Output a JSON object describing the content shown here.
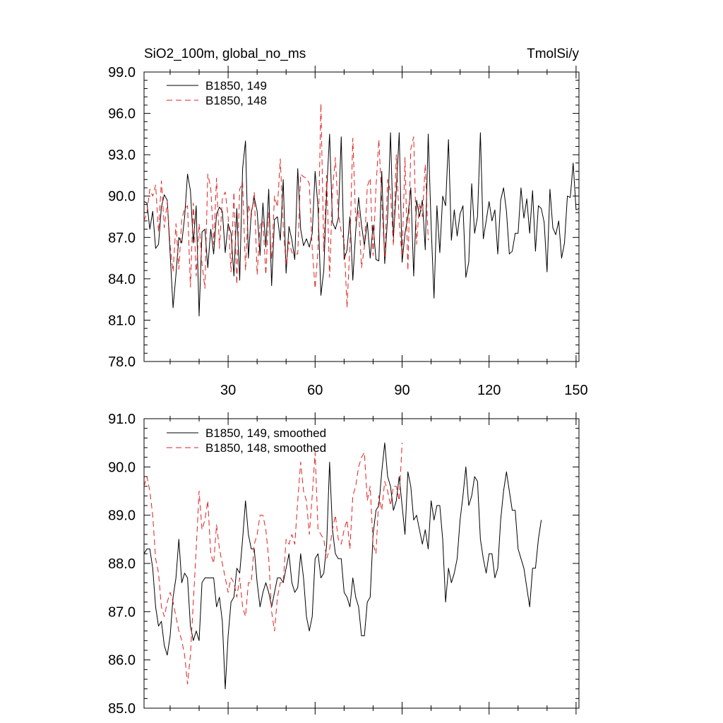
{
  "chart_data": [
    {
      "type": "line",
      "title_left": "SiO2_100m, global_no_ms",
      "title_right": "TmolSi/y",
      "xlim": [
        1,
        151
      ],
      "ylim": [
        78,
        99
      ],
      "yticks": [
        "78.0",
        "81.0",
        "84.0",
        "87.0",
        "90.0",
        "93.0",
        "96.0",
        "99.0"
      ],
      "xticks": [
        "30",
        "60",
        "90",
        "120",
        "150"
      ],
      "show_xtick_labels": true,
      "legend_position": "top-left",
      "series": [
        {
          "name": "B1850, 149",
          "color": "#000000",
          "dash": "solid",
          "values": [
            89.6,
            89.5,
            87.6,
            88.9,
            86.2,
            86.5,
            89.2,
            90.1,
            89.7,
            85.8,
            81.9,
            84.3,
            87.0,
            86.6,
            88.5,
            91.6,
            90.4,
            86.6,
            89.3,
            81.3,
            87.4,
            87.6,
            84.8,
            87.6,
            85.8,
            88.7,
            89.2,
            88.9,
            85.9,
            88.0,
            87.3,
            84.2,
            89.1,
            83.9,
            92.0,
            94.0,
            85.5,
            88.8,
            89.9,
            88.9,
            85.7,
            89.5,
            86.3,
            90.5,
            83.5,
            88.3,
            88.5,
            86.8,
            91.2,
            84.4,
            87.8,
            86.8,
            85.4,
            92.0,
            87.6,
            86.4,
            86.9,
            86.3,
            87.3,
            91.8,
            89.2,
            82.8,
            84.6,
            90.4,
            94.5,
            88.1,
            87.6,
            88.4,
            94.3,
            85.4,
            86.1,
            88.5,
            83.9,
            87.5,
            89.9,
            87.9,
            86.4,
            88.1,
            85.5,
            87.9,
            85.4,
            85.3,
            91.8,
            85.1,
            88.5,
            94.6,
            87.0,
            90.4,
            94.6,
            85.2,
            87.3,
            88.5,
            90.6,
            84.2,
            89.7,
            88.5,
            89.7,
            86.1,
            94.5,
            87.9,
            82.6,
            89.3,
            85.9,
            90.0,
            89.3,
            94.1,
            86.8,
            89.0,
            87.1,
            88.7,
            89.3,
            84.1,
            85.2,
            90.9,
            87.3,
            88.5,
            94.6,
            86.9,
            88.2,
            89.6,
            88.2,
            89.0,
            85.8,
            89.7,
            90.6,
            88.9,
            85.8,
            86.0,
            87.3,
            87.3,
            90.6,
            88.4,
            89.8,
            87.3,
            90.4,
            86.0,
            89.3,
            89.1,
            88.1,
            84.5,
            90.5,
            87.7,
            87.2,
            88.2,
            85.5,
            86.6,
            90.0,
            89.9,
            92.4,
            89.0,
            89.1
          ]
        },
        {
          "name": "B1850, 148",
          "color": "#e0201f",
          "dash": "dashed",
          "values": [
            88.2,
            88.8,
            90.5,
            90.0,
            90.8,
            87.4,
            91.1,
            87.7,
            89.6,
            86.4,
            84.5,
            88.0,
            84.7,
            88.3,
            89.1,
            89.3,
            83.4,
            89.5,
            84.2,
            88.0,
            85.1,
            83.3,
            91.6,
            90.6,
            86.5,
            91.3,
            86.2,
            89.8,
            90.3,
            88.5,
            84.5,
            90.3,
            83.6,
            90.5,
            91.0,
            84.6,
            89.4,
            88.5,
            90.3,
            84.3,
            87.9,
            88.2,
            84.3,
            88.8,
            85.4,
            90.0,
            89.2,
            92.7,
            87.8,
            85.0,
            86.7,
            85.9,
            85.8,
            85.8,
            91.6,
            91.4,
            91.3,
            90.9,
            86.2,
            83.3,
            86.1,
            96.7,
            86.0,
            91.5,
            84.1,
            90.4,
            92.8,
            88.8,
            87.4,
            86.8,
            81.9,
            86.5,
            94.2,
            88.2,
            89.0,
            84.8,
            86.3,
            90.7,
            91.3,
            85.7,
            90.6,
            94.1,
            89.6,
            85.5,
            91.2,
            90.3,
            86.4,
            93.0,
            88.1,
            85.6,
            92.8,
            84.6,
            93.4,
            94.3,
            86.5,
            89.5,
            88.5,
            92.3,
            86.8
          ]
        }
      ]
    },
    {
      "type": "line",
      "title": "",
      "xlim": [
        1,
        151
      ],
      "ylim": [
        85,
        91
      ],
      "yticks": [
        "85.0",
        "86.0",
        "87.0",
        "88.0",
        "89.0",
        "90.0",
        "91.0"
      ],
      "xticks": [
        "30",
        "60",
        "90",
        "120",
        "150"
      ],
      "show_xtick_labels": false,
      "legend_position": "top-left",
      "series": [
        {
          "name": "B1850, 149, smoothed",
          "color": "#000000",
          "dash": "solid",
          "values": [
            88.2,
            88.3,
            88.3,
            87.9,
            87.1,
            86.7,
            86.8,
            86.3,
            86.1,
            86.5,
            87.3,
            87.7,
            88.5,
            87.6,
            87.8,
            87.7,
            86.7,
            86.4,
            86.6,
            86.4,
            87.6,
            87.7,
            87.7,
            87.7,
            87.7,
            87.1,
            87.3,
            86.8,
            85.4,
            86.5,
            87.2,
            87.3,
            87.9,
            87.8,
            88.5,
            89.3,
            88.6,
            88.3,
            88.3,
            87.6,
            87.1,
            87.4,
            87.6,
            87.4,
            87.1,
            87.4,
            87.7,
            87.7,
            87.6,
            87.9,
            88.2,
            87.6,
            87.4,
            87.5,
            88.2,
            87.7,
            86.9,
            86.6,
            86.9,
            88.1,
            88.2,
            87.7,
            87.8,
            88.4,
            90.1,
            88.7,
            88.2,
            88.1,
            88.1,
            87.4,
            87.3,
            87.1,
            87.7,
            87.3,
            87.1,
            86.5,
            86.5,
            87.2,
            87.3,
            88.6,
            89.1,
            89.2,
            89.9,
            90.5,
            89.8,
            89.6,
            89.1,
            89.3,
            89.8,
            89.2,
            88.6,
            89.9,
            89.6,
            88.9,
            89.0,
            88.7,
            88.4,
            88.7,
            88.3,
            89.3,
            88.9,
            89.2,
            89.2,
            88.5,
            87.2,
            87.9,
            87.6,
            87.8,
            88.1,
            88.9,
            89.4,
            90.0,
            89.2,
            89.4,
            89.8,
            89.7,
            88.5,
            88.1,
            87.8,
            88.2,
            88.2,
            87.7,
            87.9,
            88.9,
            89.5,
            89.9,
            89.5,
            89.1,
            89.1,
            88.3,
            88.1,
            87.9,
            87.5,
            87.1,
            87.9,
            87.9,
            88.5,
            88.9
          ]
        },
        {
          "name": "B1850, 148, smoothed",
          "color": "#e0201f",
          "dash": "dashed",
          "values": [
            89.6,
            89.8,
            89.5,
            89.0,
            88.1,
            87.8,
            87.1,
            86.9,
            87.2,
            87.4,
            87.2,
            86.9,
            86.6,
            86.4,
            86.1,
            85.5,
            86.1,
            87.2,
            88.3,
            89.5,
            88.7,
            88.9,
            89.3,
            88.2,
            88.0,
            88.8,
            88.3,
            88.0,
            87.7,
            87.4,
            87.7,
            87.6,
            87.3,
            87.7,
            87.1,
            86.9,
            87.6,
            87.6,
            88.4,
            88.6,
            89.0,
            89.0,
            88.7,
            88.1,
            87.0,
            86.6,
            87.3,
            87.6,
            87.6,
            88.5,
            88.4,
            88.6,
            88.4,
            89.3,
            90.1,
            89.5,
            89.3,
            88.6,
            89.4,
            90.3,
            88.7,
            88.6,
            88.5,
            88.1,
            88.3,
            88.7,
            89.0,
            88.5,
            88.4,
            88.7,
            88.9,
            88.3,
            89.4,
            89.6,
            90.0,
            90.2,
            90.3,
            89.3,
            89.6,
            88.4,
            88.2,
            89.4,
            89.1,
            89.7,
            89.5,
            89.2,
            89.6,
            89.6,
            89.3,
            90.5
          ]
        }
      ]
    }
  ]
}
